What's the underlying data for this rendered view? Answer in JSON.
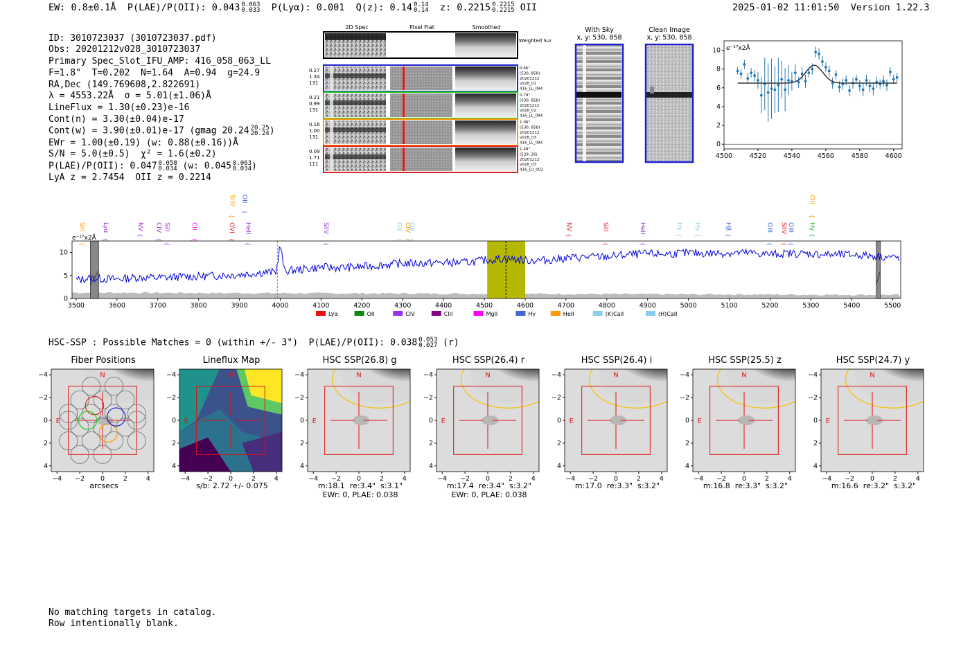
{
  "header": {
    "ew": "EW: 0.8±0.1Å",
    "plae": "P(LAE)/P(OII): 0.043",
    "plae_hi": "0.063",
    "plae_lo": "0.033",
    "plya": "P(Lyα): 0.001",
    "qz": "Q(z): 0.14",
    "qz_hi": "0.14",
    "qz_lo": "0.14",
    "z": "z: 0.2215",
    "z_hi": "0.2215",
    "z_lo": "0.2215",
    "z_line": "OII",
    "timestamp": "2025-01-02 11:01:50",
    "version": "Version 1.22.3"
  },
  "info_lines": [
    "ID: 3010723037 (3010723037.pdf)",
    "Obs: 20201212v028_3010723037",
    "Primary Spec_Slot_IFU_AMP: 416_058_063_LL",
    "F=1.8\"  T=0.202  N=1.64  A=0.94  g=24.9",
    "RA,Dec (149.769608,2.822691)",
    "λ = 4553.22Å  σ = 5.01(±1.06)Å",
    "LineFlux = 1.30(±0.23)e-16",
    "Cont(n) = 3.30(±0.04)e-17",
    "Cont(w) = 3.90(±0.01)e-17 (gmag 20.24",
    "EWr = 1.00(±0.19) (w: 0.88(±0.16))Å",
    "S/N = 5.0(±0.5)  χ² = 1.6(±0.2)",
    "P(LAE)/P(OII): 0.047",
    "LyA z = 2.7454  OII z = 0.2214"
  ],
  "info_extras": {
    "gmag_hi": "20.25",
    "gmag_lo": "20.24",
    "plae2_hi": "0.058",
    "plae2_lo": "0.034",
    "plae2_w": "(w: 0.045",
    "plae2_w_hi": "0.063",
    "plae2_w_lo": "0.034"
  },
  "cutouts": {
    "col_labels": [
      "2D Spec",
      "Pixel Flat",
      "Smoothed"
    ],
    "weighted_label": "Weighted Sum",
    "rows": [
      {
        "left": [
          "0.27",
          "1.34",
          "131"
        ],
        "right": [
          "0.66\"",
          "(530, 858)",
          "20201212",
          "v028_01",
          "416_LL_094"
        ],
        "color": "#2222cc"
      },
      {
        "left": [
          "0.21",
          "0.99",
          "131"
        ],
        "right": [
          "0.79\"",
          "(530, 858)",
          "20201212",
          "v028_02",
          "416_LL_094"
        ],
        "color": "#22cc22"
      },
      {
        "left": [
          "0.16",
          "1.00",
          "131"
        ],
        "right": [
          "1.06\"",
          "(530, 858)",
          "20201212",
          "v028_03",
          "416_LL_094"
        ],
        "color": "#ff9900"
      },
      {
        "left": [
          "0.09",
          "1.71",
          "111"
        ],
        "right": [
          "1.48\"",
          "(529, 26)",
          "20201212",
          "v028_03",
          "416_LU_002"
        ],
        "color": "#dd2222"
      }
    ]
  },
  "sky_images": {
    "with_sky": {
      "title": "With Sky",
      "coords": "x, y: 530, 858"
    },
    "clean": {
      "title": "Clean Image",
      "coords": "x, y: 530, 858"
    }
  },
  "chart_data": [
    {
      "type": "scatter",
      "name": "line-fit",
      "ylabel_unit": "e⁻¹⁷x2Å",
      "xlim": [
        4500,
        4605
      ],
      "ylim": [
        -0.5,
        11
      ],
      "xticks": [
        4500,
        4520,
        4540,
        4560,
        4580,
        4600
      ],
      "yticks": [
        0,
        2,
        4,
        6,
        8,
        10
      ],
      "fit": {
        "continuum": 6.5,
        "amplitude": 1.9,
        "center": 4553.2,
        "sigma": 5.0,
        "x_range": [
          4508,
          4602
        ]
      },
      "x": [
        4508,
        4510,
        4512,
        4514,
        4516,
        4518,
        4520,
        4522,
        4524,
        4526,
        4528,
        4530,
        4532,
        4534,
        4536,
        4538,
        4540,
        4542,
        4544,
        4546,
        4548,
        4550,
        4552,
        4554,
        4556,
        4558,
        4560,
        4562,
        4564,
        4566,
        4568,
        4570,
        4572,
        4574,
        4576,
        4578,
        4580,
        4582,
        4584,
        4586,
        4588,
        4590,
        4592,
        4594,
        4596,
        4598,
        4600,
        4602
      ],
      "y": [
        7.8,
        7.5,
        8.5,
        7.0,
        7.6,
        7.3,
        6.8,
        5.2,
        6.4,
        5.5,
        5.9,
        5.8,
        6.3,
        6.9,
        5.8,
        6.8,
        6.7,
        7.6,
        6.6,
        7.5,
        6.7,
        7.6,
        8.0,
        9.8,
        9.6,
        8.8,
        8.2,
        7.8,
        6.5,
        7.4,
        6.1,
        6.4,
        6.8,
        5.7,
        6.5,
        6.9,
        6.2,
        5.8,
        6.8,
        6.2,
        5.9,
        6.6,
        6.4,
        6.7,
        6.3,
        7.7,
        6.9,
        7.1
      ],
      "err": [
        0.4,
        0.5,
        0.5,
        0.6,
        0.5,
        0.6,
        0.9,
        1.9,
        2.8,
        3.1,
        3.2,
        2.5,
        2.9,
        2.0,
        2.3,
        1.6,
        1.0,
        0.9,
        0.6,
        0.7,
        0.7,
        0.5,
        0.6,
        0.6,
        0.6,
        0.6,
        0.5,
        0.6,
        0.6,
        0.5,
        0.6,
        0.6,
        0.5,
        0.6,
        0.6,
        0.5,
        0.6,
        0.7,
        0.6,
        0.7,
        0.7,
        0.6,
        0.5,
        0.6,
        0.6,
        0.5,
        0.5,
        0.5
      ],
      "point_color": "#1f77b4",
      "fit_color": "#333333"
    },
    {
      "type": "line",
      "name": "full-spectrum",
      "ylabel_unit": "e⁻¹⁷x2Å",
      "xlim": [
        3490,
        5520
      ],
      "ylim": [
        0,
        12.5
      ],
      "xticks": [
        3500,
        3600,
        3700,
        3800,
        3900,
        4000,
        4100,
        4200,
        4300,
        4400,
        4500,
        4600,
        4700,
        4800,
        4900,
        5000,
        5100,
        5200,
        5300,
        5400,
        5500
      ],
      "yticks": [
        0,
        5,
        10
      ],
      "anchors_x": [
        3500,
        3540,
        3560,
        3600,
        3650,
        3700,
        3750,
        3800,
        3850,
        3900,
        3950,
        3990,
        4000,
        4010,
        4050,
        4100,
        4150,
        4200,
        4250,
        4300,
        4350,
        4400,
        4450,
        4500,
        4550,
        4600,
        4650,
        4700,
        4750,
        4800,
        4850,
        4900,
        4950,
        5000,
        5050,
        5100,
        5150,
        5200,
        5250,
        5300,
        5350,
        5400,
        5450,
        5520
      ],
      "anchors_y": [
        4.0,
        4.5,
        4.3,
        4.2,
        4.6,
        4.5,
        4.7,
        4.8,
        5.0,
        5.2,
        5.6,
        5.8,
        11.8,
        6.0,
        6.3,
        6.8,
        6.7,
        6.9,
        7.3,
        7.6,
        7.7,
        7.8,
        7.8,
        8.3,
        8.7,
        8.3,
        8.3,
        8.8,
        9.0,
        9.1,
        9.5,
        9.7,
        9.7,
        9.9,
        9.8,
        9.9,
        9.9,
        9.6,
        9.8,
        9.7,
        9.5,
        9.5,
        9.3,
        8.8
      ],
      "noise": 0.9,
      "line_color": "#0000dd",
      "error_fill": "#bbbbbb",
      "highlight": {
        "x0": 4507,
        "x1": 4600,
        "color": "#b5b800"
      },
      "markers": [
        {
          "x": 4553,
          "style": "dashed-black"
        },
        {
          "x": 3993,
          "style": "dashed-grey"
        }
      ],
      "masked": [
        {
          "x0": 3535,
          "x1": 3555
        },
        {
          "x0": 5460,
          "x1": 5470
        }
      ],
      "line_labels": [
        {
          "text": "SiII",
          "x": 3505,
          "color": "#ff9900",
          "row": 1
        },
        {
          "text": "Lyα",
          "x": 3563,
          "color": "#9933cc",
          "row": 1
        },
        {
          "text": "NV",
          "x": 3648,
          "color": "#9933cc",
          "row": 1
        },
        {
          "text": "CIV",
          "x": 3693,
          "color": "#9933cc",
          "row": 1
        },
        {
          "text": "SiII",
          "x": 3713,
          "color": "#9933cc",
          "row": 1
        },
        {
          "text": "CII",
          "x": 3780,
          "color": "#ff00ff",
          "row": 1
        },
        {
          "text": "OVI",
          "x": 3872,
          "color": "#dd2222",
          "row": 1
        },
        {
          "text": "HeII",
          "x": 3912,
          "color": "#9933cc",
          "row": 1
        },
        {
          "text": "SiIV",
          "x": 3873,
          "color": "#ff9900",
          "row": 0
        },
        {
          "text": "OII",
          "x": 3903,
          "color": "#4466dd",
          "row": 0
        },
        {
          "text": "SiIV",
          "x": 4103,
          "color": "#9933cc",
          "row": 1
        },
        {
          "text": "OII",
          "x": 4282,
          "color": "#88ccee",
          "row": 1
        },
        {
          "text": "CIV",
          "x": 4303,
          "color": "#ff9900",
          "row": 1
        },
        {
          "text": "OII",
          "x": 4313,
          "color": "#88ccee",
          "row": 1
        },
        {
          "text": "NV",
          "x": 4698,
          "color": "#dd2222",
          "row": 1
        },
        {
          "text": "SiII",
          "x": 4788,
          "color": "#dd2222",
          "row": 1
        },
        {
          "text": "HeII",
          "x": 4878,
          "color": "#9933cc",
          "row": 1
        },
        {
          "text": "Hγ",
          "x": 4968,
          "color": "#88ccee",
          "row": 1
        },
        {
          "text": "Hγ",
          "x": 5013,
          "color": "#88ccee",
          "row": 1
        },
        {
          "text": "Hβ",
          "x": 5088,
          "color": "#4466dd",
          "row": 1
        },
        {
          "text": "OIII",
          "x": 5190,
          "color": "#4466dd",
          "row": 1
        },
        {
          "text": "SiIV",
          "x": 5225,
          "color": "#dd2222",
          "row": 1
        },
        {
          "text": "OIII",
          "x": 5242,
          "color": "#4466dd",
          "row": 1
        },
        {
          "text": "Hγ",
          "x": 5293,
          "color": "#22aa22",
          "row": 1
        },
        {
          "text": "CIII",
          "x": 5293,
          "color": "#ff9900",
          "row": 0
        }
      ],
      "legend": [
        {
          "label": "Lyα",
          "color": "#ee1111"
        },
        {
          "label": "OII",
          "color": "#118811"
        },
        {
          "label": "CIV",
          "color": "#9933ee"
        },
        {
          "label": "CIII",
          "color": "#880088"
        },
        {
          "label": "MgII",
          "color": "#ff00ff"
        },
        {
          "label": "Hγ",
          "color": "#4466dd"
        },
        {
          "label": "HeII",
          "color": "#ff9900"
        },
        {
          "label": "(K)CaII",
          "color": "#88ccee"
        },
        {
          "label": "(H)CaII",
          "color": "#88ccee"
        }
      ]
    }
  ],
  "hsc": {
    "summary": "HSC-SSP : Possible Matches = 0 (within +/- 3\")  P(LAE)/P(OII): 0.038",
    "summary_hi": "0.053",
    "summary_lo": "0.027",
    "summary_band": "(r)",
    "panels": [
      {
        "title": "Fiber Positions",
        "kind": "fiber",
        "caption": [
          "arcsecs"
        ]
      },
      {
        "title": "Lineflux Map",
        "kind": "lineflux",
        "caption": [
          "s/b: 2.72 +/- 0.075"
        ]
      },
      {
        "title": "HSC SSP(26.8) g",
        "kind": "band",
        "caption": [
          "m:18.1  re:3.4\"  s:3.1\"",
          "EWr: 0, PLAE: 0.038"
        ]
      },
      {
        "title": "HSC SSP(26.4) r",
        "kind": "band",
        "caption": [
          "m:17.4  re:3.4\"  s:3.2\"",
          "EWr: 0, PLAE: 0.038"
        ]
      },
      {
        "title": "HSC SSP(26.4) i",
        "kind": "band",
        "caption": [
          "m:17.0  re:3.3\"  s:3.2\""
        ]
      },
      {
        "title": "HSC SSP(25.5) z",
        "kind": "band",
        "caption": [
          "m:16.8  re:3.3\"  s:3.2\""
        ]
      },
      {
        "title": "HSC SSP(24.7) y",
        "kind": "band",
        "caption": [
          "m:16.6  re:3.2\"  s:3.2\""
        ]
      }
    ],
    "ticks": [
      "−4",
      "−2",
      "0",
      "2",
      "4"
    ],
    "north": "N",
    "east": "E"
  },
  "footer": [
    "No matching targets in catalog.",
    "Row intentionally blank."
  ]
}
